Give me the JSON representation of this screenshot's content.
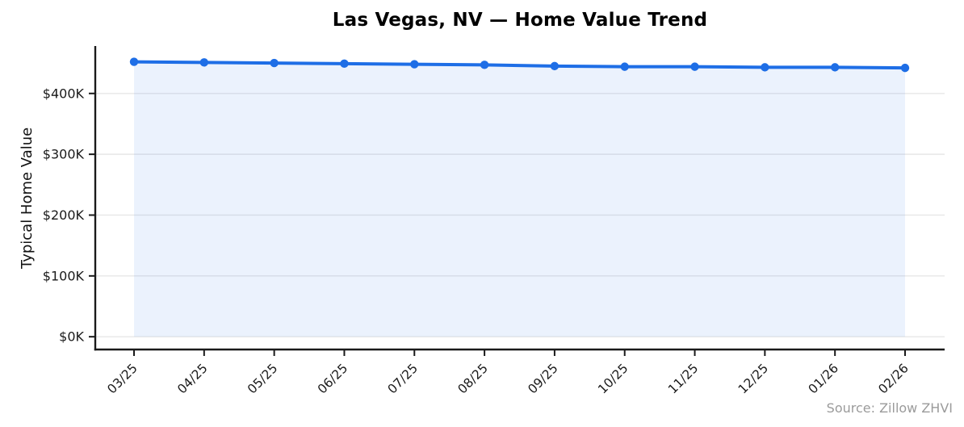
{
  "chart_data": {
    "type": "line",
    "title": "Las Vegas, NV — Home Value Trend",
    "xlabel": "",
    "ylabel": "Typical Home Value",
    "source_note": "Source: Zillow ZHVI",
    "categories": [
      "03/25",
      "04/25",
      "05/25",
      "06/25",
      "07/25",
      "08/25",
      "09/25",
      "10/25",
      "11/25",
      "12/25",
      "01/26",
      "02/26"
    ],
    "series": [
      {
        "name": "Typical Home Value",
        "values": [
          452000,
          451000,
          450000,
          449000,
          448000,
          447000,
          445000,
          444000,
          444000,
          443000,
          443000,
          442000
        ]
      }
    ],
    "y_ticks": [
      {
        "value": 0,
        "label": "$0K"
      },
      {
        "value": 100000,
        "label": "$100K"
      },
      {
        "value": 200000,
        "label": "$200K"
      },
      {
        "value": 300000,
        "label": "$300K"
      },
      {
        "value": 400000,
        "label": "$400K"
      }
    ],
    "ylim": [
      -21000,
      478000
    ],
    "grid": "horizontal",
    "legend": "none",
    "marker": "circle",
    "area_fill": true,
    "colors": {
      "line": "#1e6ee6",
      "marker": "#1e6ee6",
      "area_fill": "rgba(30,110,230,0.09)",
      "gridline": "#e7e7e7",
      "axis": "#1a1a1a",
      "tick_label": "#1a1a1a",
      "title": "#000000",
      "source_note": "#9b9b9b"
    }
  }
}
